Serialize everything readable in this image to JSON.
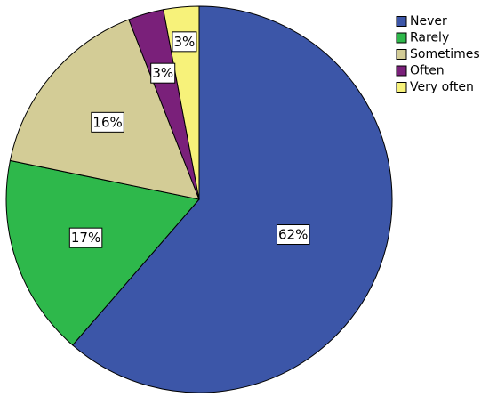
{
  "chart_data": {
    "type": "pie",
    "title": "",
    "slices": [
      {
        "label": "Never",
        "value": 62,
        "display": "62%",
        "color": "#3c56a8"
      },
      {
        "label": "Rarely",
        "value": 17,
        "display": "17%",
        "color": "#2eb84b"
      },
      {
        "label": "Sometimes",
        "value": 16,
        "display": "16%",
        "color": "#d3cc96"
      },
      {
        "label": "Often",
        "value": 3,
        "display": "3%",
        "color": "#7a207a"
      },
      {
        "label": "Very often",
        "value": 3,
        "display": "3%",
        "color": "#f7f27a"
      }
    ],
    "legend_position": "top-right",
    "start_angle_deg": 0,
    "direction": "clockwise"
  }
}
